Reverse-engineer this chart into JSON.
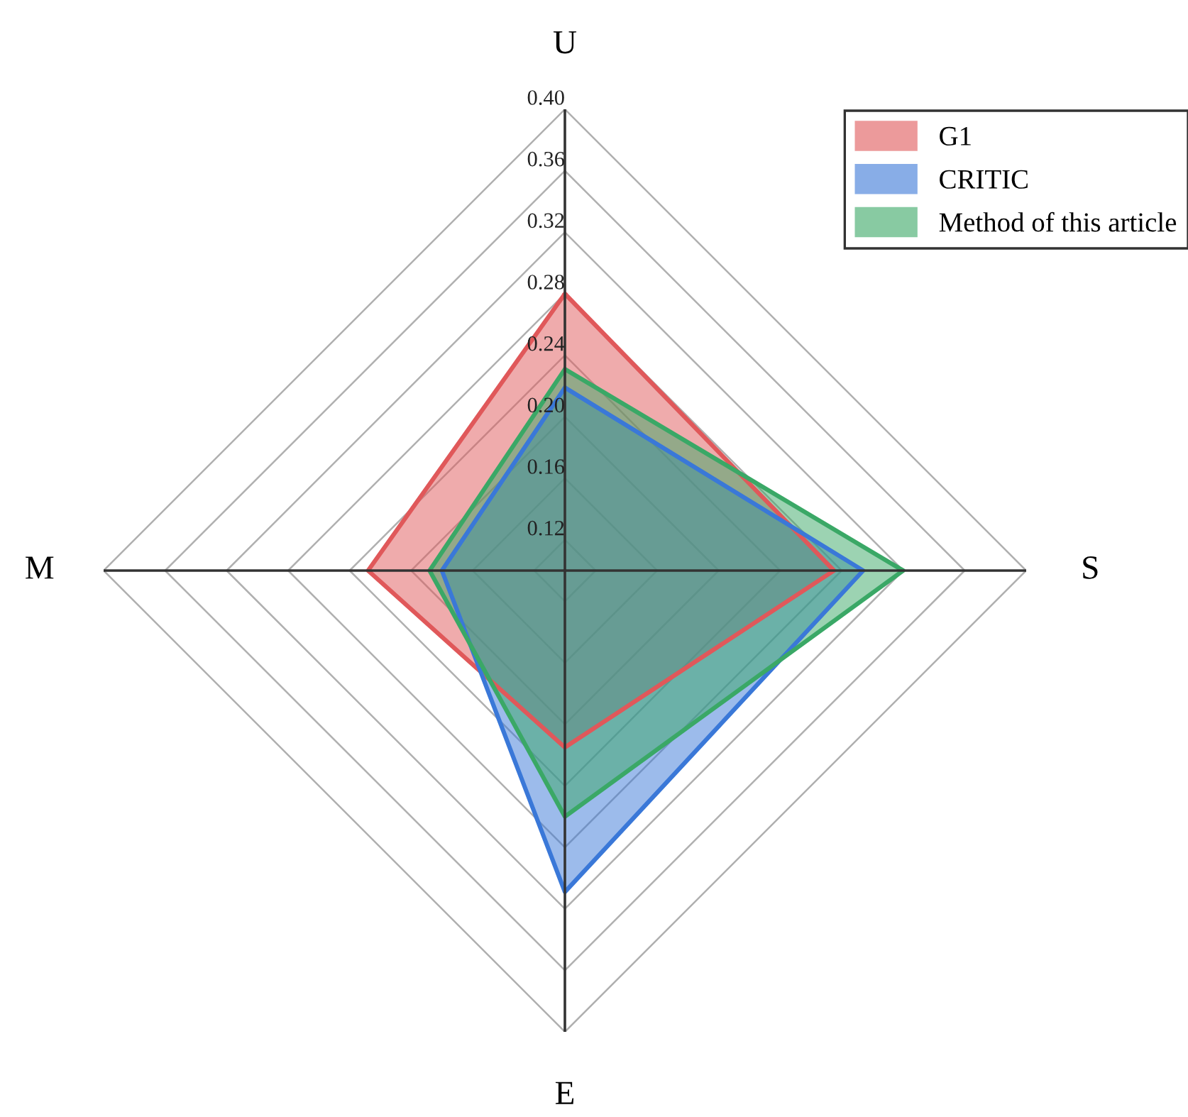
{
  "chart_data": {
    "type": "radar",
    "categories": [
      "U",
      "S",
      "E",
      "M"
    ],
    "ylim": [
      0.1,
      0.4
    ],
    "yticks": [
      0.12,
      0.16,
      {
        "value": 0.2,
        "label": "0.20"
      },
      0.24,
      0.28,
      0.32,
      0.36,
      {
        "value": 0.4,
        "label": "0.40"
      }
    ],
    "legend": "top right",
    "series": [
      {
        "name": "G1",
        "color": "#e0585a",
        "values": [
          0.28,
          0.275,
          0.215,
          0.228
        ]
      },
      {
        "name": "CRITIC",
        "color": "#3a78d8",
        "values": [
          0.219,
          0.294,
          0.309,
          0.18
        ]
      },
      {
        "name": "Method of this article",
        "color": "#3aa866",
        "values": [
          0.231,
          0.32,
          0.26,
          0.188
        ]
      }
    ]
  }
}
